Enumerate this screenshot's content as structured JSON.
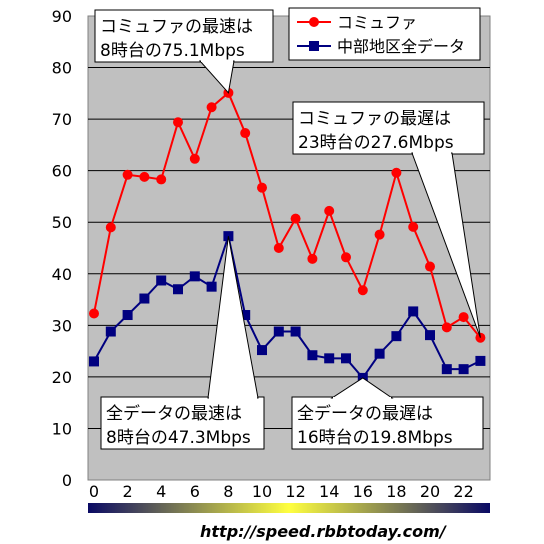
{
  "chart_data": {
    "type": "line",
    "x": [
      0,
      1,
      2,
      3,
      4,
      5,
      6,
      7,
      8,
      9,
      10,
      11,
      12,
      13,
      14,
      15,
      16,
      17,
      18,
      19,
      20,
      21,
      22,
      23
    ],
    "x_tick_labels": [
      "0",
      "2",
      "4",
      "6",
      "8",
      "10",
      "12",
      "14",
      "16",
      "18",
      "20",
      "22"
    ],
    "x_ticks": [
      0,
      2,
      4,
      6,
      8,
      10,
      12,
      14,
      16,
      18,
      20,
      22
    ],
    "y_ticks": [
      0,
      10,
      20,
      30,
      40,
      50,
      60,
      70,
      80,
      90
    ],
    "ylim": [
      0,
      90
    ],
    "grid": "horizontal",
    "legend_position": "top-right",
    "series": [
      {
        "name": "コミュファ",
        "color": "#ff0000",
        "marker": "circle",
        "values": [
          32.3,
          49.0,
          59.2,
          58.8,
          58.3,
          69.4,
          62.3,
          72.3,
          75.1,
          67.3,
          56.7,
          45.0,
          50.7,
          42.9,
          52.2,
          43.2,
          36.8,
          47.6,
          59.6,
          49.1,
          41.4,
          29.6,
          31.6,
          27.6
        ]
      },
      {
        "name": "中部地区全データ",
        "color": "#000080",
        "marker": "square",
        "values": [
          23.0,
          28.8,
          32.0,
          35.2,
          38.7,
          37.0,
          39.5,
          37.5,
          47.3,
          32.0,
          25.2,
          28.8,
          28.8,
          24.2,
          23.6,
          23.6,
          19.8,
          24.5,
          27.9,
          32.7,
          28.1,
          21.5,
          21.5,
          23.1
        ]
      }
    ],
    "annotations": [
      {
        "line1": "コミュファの最速は",
        "line2": "8時台の75.1Mbps",
        "target_x": 8,
        "target_series": 0
      },
      {
        "line1": "コミュファの最遅は",
        "line2": "23時台の27.6Mbps",
        "target_x": 23,
        "target_series": 0
      },
      {
        "line1": "全データの最速は",
        "line2": "8時台の47.3Mbps",
        "target_x": 8,
        "target_series": 1
      },
      {
        "line1": "全データの最遅は",
        "line2": "16時台の19.8Mbps",
        "target_x": 16,
        "target_series": 1
      }
    ],
    "source_url": "http://speed.rbbtoday.com/"
  },
  "colors": {
    "plot_background": "#c0c0c0",
    "gridline": "#000000",
    "time_bar_dark": "#0a0a64",
    "time_bar_bright": "#ffff40"
  }
}
